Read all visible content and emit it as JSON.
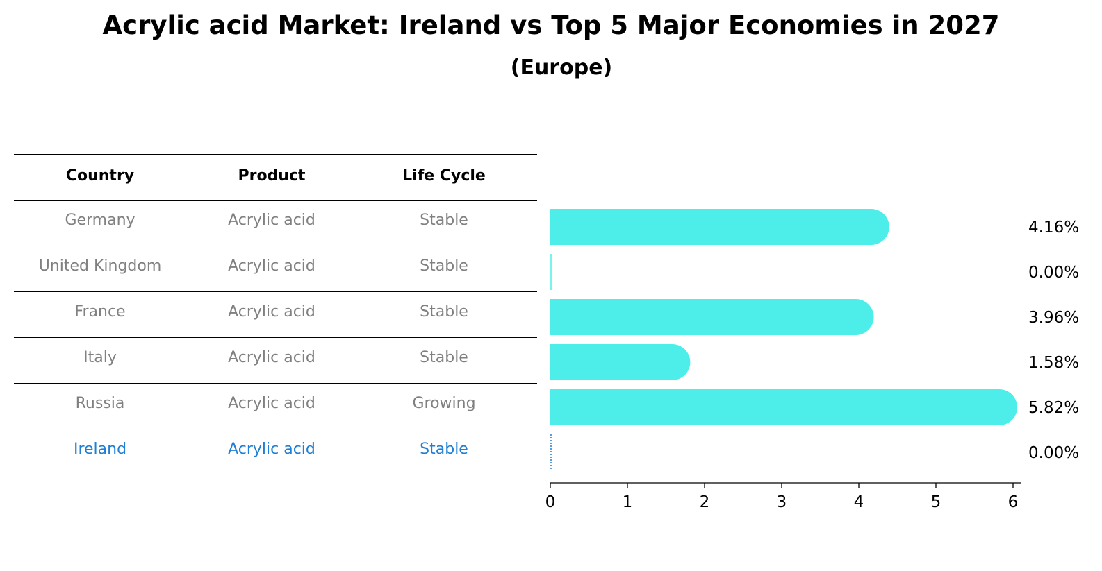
{
  "chart_data": {
    "type": "bar",
    "orientation": "horizontal",
    "title": "Acrylic acid Market: Ireland vs Top 5 Major Economies in 2027",
    "subtitle": "(Europe)",
    "table": {
      "columns": [
        "Country",
        "Product",
        "Life Cycle"
      ],
      "rows": [
        [
          "Germany",
          "Acrylic acid",
          "Stable"
        ],
        [
          "United Kingdom",
          "Acrylic acid",
          "Stable"
        ],
        [
          "France",
          "Acrylic acid",
          "Stable"
        ],
        [
          "Italy",
          "Acrylic acid",
          "Stable"
        ],
        [
          "Russia",
          "Acrylic acid",
          "Growing"
        ],
        [
          "Ireland",
          "Acrylic acid",
          "Stable"
        ]
      ],
      "highlight_row": 5
    },
    "categories": [
      "Germany",
      "United Kingdom",
      "France",
      "Italy",
      "Russia",
      "Ireland"
    ],
    "values": [
      4.16,
      0.0,
      3.96,
      1.58,
      5.82,
      0.0
    ],
    "value_labels": [
      "4.16%",
      "0.00%",
      "3.96%",
      "1.58%",
      "5.82%",
      "0.00%"
    ],
    "xlim": [
      0,
      6
    ],
    "xticks": [
      0,
      1,
      2,
      3,
      4,
      5,
      6
    ],
    "xlabel": "",
    "ylabel": "",
    "colors": {
      "bar": "#4deeea",
      "highlight": "#1f7fd4",
      "table_text": "#808080",
      "axis": "#000000"
    }
  }
}
